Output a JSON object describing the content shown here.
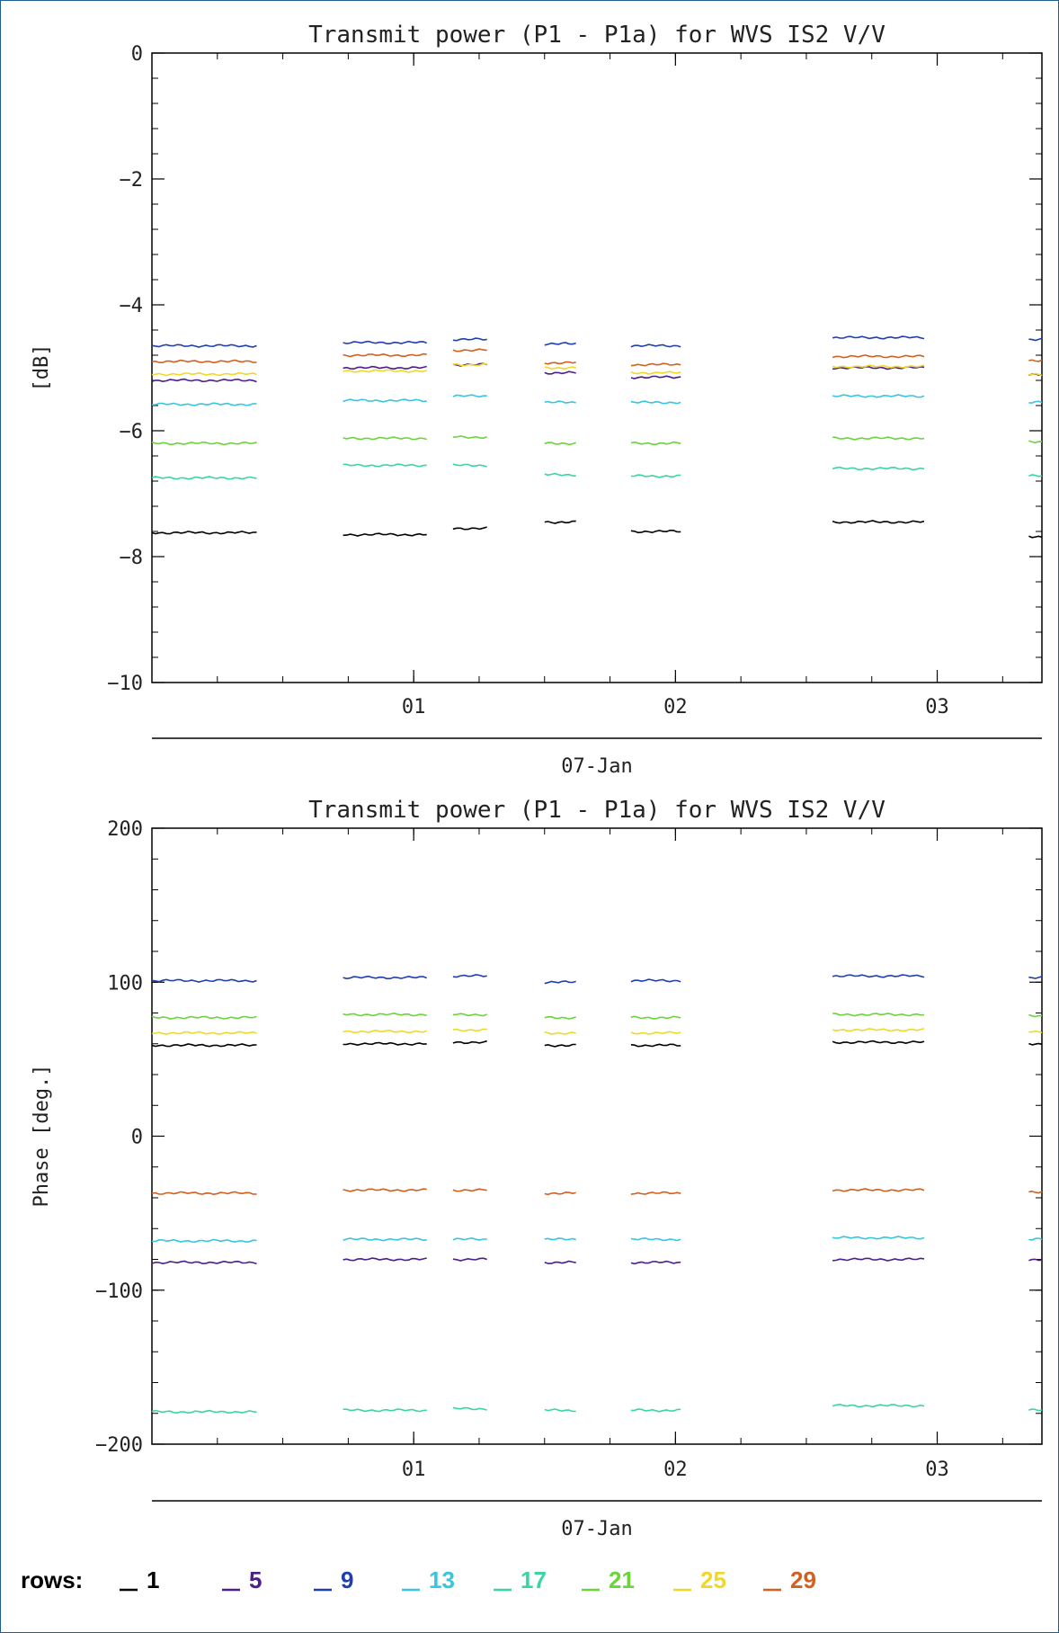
{
  "chart_data": [
    {
      "type": "line",
      "title": "Transmit power (P1 - P1a) for WVS IS2 V/V",
      "ylabel": "[dB]",
      "xlabel": "07-Jan",
      "ylim": [
        -10,
        0
      ],
      "yticks": [
        0,
        -2,
        -4,
        -6,
        -8,
        -10
      ],
      "xticks": [
        {
          "label": "01",
          "x": 1
        },
        {
          "label": "02",
          "x": 2
        },
        {
          "label": "03",
          "x": 3
        }
      ],
      "xlim": [
        0,
        3.4
      ],
      "segments": [
        [
          0,
          0.4
        ],
        [
          0.73,
          1.05
        ],
        [
          1.15,
          1.28
        ],
        [
          1.5,
          1.62
        ],
        [
          1.83,
          2.02
        ],
        [
          2.6,
          2.95
        ],
        [
          3.35,
          3.4
        ]
      ],
      "series": [
        {
          "name": "1",
          "color": "#000000",
          "values": [
            -7.62,
            -7.65,
            -7.55,
            -7.45,
            -7.6,
            -7.45,
            -7.68
          ]
        },
        {
          "name": "5",
          "color": "#4b1e8c",
          "values": [
            -5.2,
            -5.0,
            -4.95,
            -5.08,
            -5.15,
            -5.0,
            -5.1
          ]
        },
        {
          "name": "9",
          "color": "#1f3fb0",
          "values": [
            -4.65,
            -4.6,
            -4.55,
            -4.62,
            -4.65,
            -4.52,
            -4.55
          ]
        },
        {
          "name": "13",
          "color": "#36c6e0",
          "values": [
            -5.58,
            -5.52,
            -5.45,
            -5.55,
            -5.55,
            -5.45,
            -5.55
          ]
        },
        {
          "name": "17",
          "color": "#3ad6a0",
          "values": [
            -6.75,
            -6.55,
            -6.55,
            -6.7,
            -6.72,
            -6.6,
            -6.72
          ]
        },
        {
          "name": "21",
          "color": "#6ad43a",
          "values": [
            -6.2,
            -6.12,
            -6.1,
            -6.2,
            -6.2,
            -6.12,
            -6.18
          ]
        },
        {
          "name": "25",
          "color": "#f0d82a",
          "values": [
            -5.1,
            -5.05,
            -4.95,
            -5.0,
            -5.08,
            -4.98,
            -5.1
          ]
        },
        {
          "name": "29",
          "color": "#d2601e",
          "values": [
            -4.9,
            -4.8,
            -4.72,
            -4.92,
            -4.95,
            -4.82,
            -4.88
          ]
        }
      ]
    },
    {
      "type": "line",
      "title": "Transmit power (P1 - P1a) for WVS IS2 V/V",
      "ylabel": "Phase [deg.]",
      "xlabel": "07-Jan",
      "ylim": [
        -200,
        200
      ],
      "yticks": [
        200,
        100,
        0,
        -100,
        -200
      ],
      "xticks": [
        {
          "label": "01",
          "x": 1
        },
        {
          "label": "02",
          "x": 2
        },
        {
          "label": "03",
          "x": 3
        }
      ],
      "xlim": [
        0,
        3.4
      ],
      "segments": [
        [
          0,
          0.4
        ],
        [
          0.73,
          1.05
        ],
        [
          1.15,
          1.28
        ],
        [
          1.5,
          1.62
        ],
        [
          1.83,
          2.02
        ],
        [
          2.6,
          2.95
        ],
        [
          3.35,
          3.4
        ]
      ],
      "series": [
        {
          "name": "1",
          "color": "#000000",
          "values": [
            59,
            60,
            61,
            59,
            59,
            61,
            60
          ]
        },
        {
          "name": "5",
          "color": "#4b1e8c",
          "values": [
            -82,
            -80,
            -80,
            -82,
            -82,
            -80,
            -80
          ]
        },
        {
          "name": "9",
          "color": "#1f3fb0",
          "values": [
            101,
            103,
            104,
            100,
            101,
            104,
            103
          ]
        },
        {
          "name": "13",
          "color": "#36c6e0",
          "values": [
            -68,
            -67,
            -67,
            -67,
            -67,
            -66,
            -67
          ]
        },
        {
          "name": "17",
          "color": "#3ad6a0",
          "values": [
            -179,
            -178,
            -177,
            -178,
            -178,
            -175,
            -178
          ]
        },
        {
          "name": "21",
          "color": "#6ad43a",
          "values": [
            77,
            79,
            79,
            77,
            77,
            79,
            78
          ]
        },
        {
          "name": "25",
          "color": "#f0d82a",
          "values": [
            67,
            68,
            69,
            67,
            67,
            69,
            68
          ]
        },
        {
          "name": "29",
          "color": "#d2601e",
          "values": [
            -37,
            -35,
            -35,
            -37,
            -37,
            -35,
            -36
          ]
        }
      ]
    }
  ],
  "legend": {
    "label": "rows:",
    "items": [
      {
        "text": "1",
        "color": "#000000"
      },
      {
        "text": "5",
        "color": "#4b1e8c"
      },
      {
        "text": "9",
        "color": "#1f3fb0"
      },
      {
        "text": "13",
        "color": "#36c6e0"
      },
      {
        "text": "17",
        "color": "#3ad6a0"
      },
      {
        "text": "21",
        "color": "#6ad43a"
      },
      {
        "text": "25",
        "color": "#f0d82a"
      },
      {
        "text": "29",
        "color": "#d2601e"
      }
    ]
  }
}
